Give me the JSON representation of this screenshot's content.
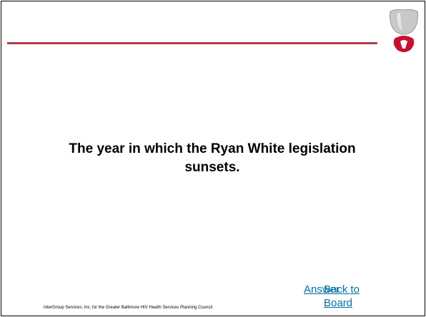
{
  "slide": {
    "question": "The year in which the Ryan White legislation sunsets.",
    "links": [
      "Answer",
      "Back to Board"
    ],
    "footer": "InterGroup Services, Inc. for the Greater Baltimore HIV Health Services Planning Council"
  }
}
